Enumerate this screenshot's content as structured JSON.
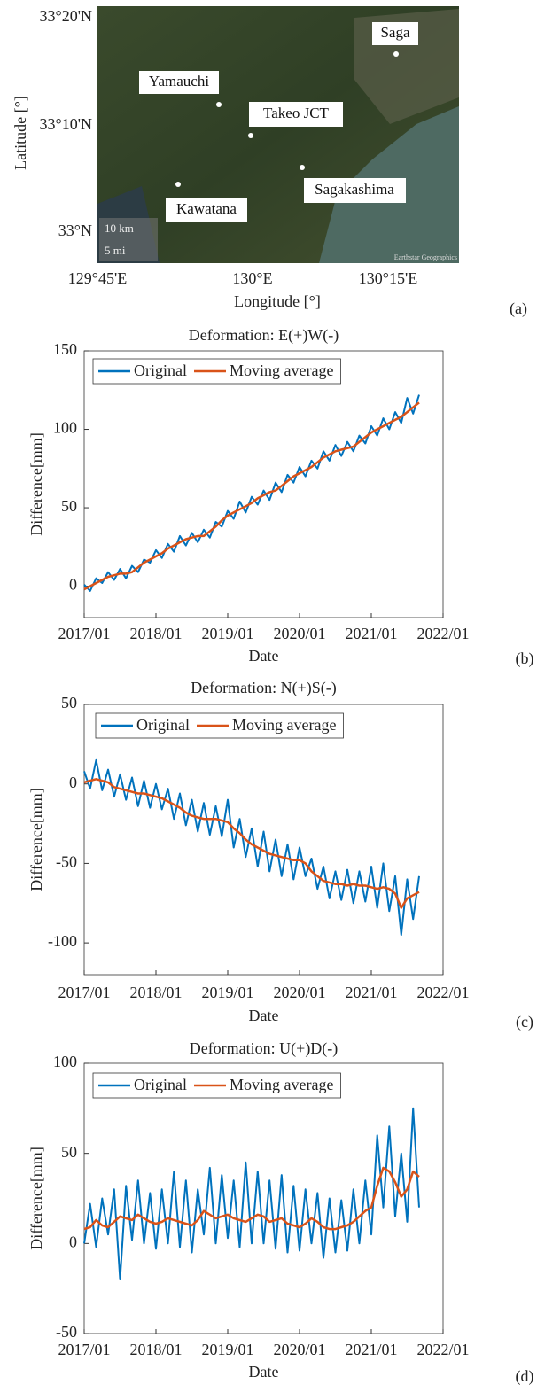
{
  "map": {
    "lat_labels": [
      "33°20'N",
      "33°10'N",
      "33°N"
    ],
    "lon_labels": [
      "129°45'E",
      "130°E",
      "130°15'E"
    ],
    "xlabel": "Longitude [°]",
    "ylabel": "Latitude [°]",
    "places": [
      "Saga",
      "Yamauchi",
      "Takeo JCT",
      "Sagakashima",
      "Kawatana"
    ],
    "scale": [
      "10 km",
      "5 mi"
    ],
    "attribution": "Earthstar Geographics",
    "panel": "(a)"
  },
  "chart_data": [
    {
      "type": "line",
      "title": "Deformation: E(+)W(-)",
      "xlabel": "Date",
      "ylabel": "Difference[mm]",
      "panel": "(b)",
      "xlim": [
        "2017/01",
        "2022/01"
      ],
      "xticks": [
        "2017/01",
        "2018/01",
        "2019/01",
        "2020/01",
        "2021/01",
        "2022/01"
      ],
      "ylim": [
        -20,
        150
      ],
      "yticks": [
        0,
        50,
        100,
        150
      ],
      "legend": "upper left",
      "x": [
        "2017/01",
        "2017/02",
        "2017/03",
        "2017/04",
        "2017/05",
        "2017/06",
        "2017/07",
        "2017/08",
        "2017/09",
        "2017/10",
        "2017/11",
        "2017/12",
        "2018/01",
        "2018/02",
        "2018/03",
        "2018/04",
        "2018/05",
        "2018/06",
        "2018/07",
        "2018/08",
        "2018/09",
        "2018/10",
        "2018/11",
        "2018/12",
        "2019/01",
        "2019/02",
        "2019/03",
        "2019/04",
        "2019/05",
        "2019/06",
        "2019/07",
        "2019/08",
        "2019/09",
        "2019/10",
        "2019/11",
        "2019/12",
        "2020/01",
        "2020/02",
        "2020/03",
        "2020/04",
        "2020/05",
        "2020/06",
        "2020/07",
        "2020/08",
        "2020/09",
        "2020/10",
        "2020/11",
        "2020/12",
        "2021/01",
        "2021/02",
        "2021/03",
        "2021/04",
        "2021/05",
        "2021/06",
        "2021/07",
        "2021/08",
        "2021/09"
      ],
      "series": [
        {
          "name": "Original",
          "color": "#0072BD",
          "values": [
            1,
            -3,
            5,
            2,
            9,
            4,
            11,
            5,
            13,
            9,
            17,
            15,
            23,
            18,
            27,
            22,
            32,
            26,
            34,
            28,
            36,
            31,
            41,
            38,
            48,
            43,
            54,
            47,
            57,
            52,
            61,
            55,
            66,
            60,
            71,
            66,
            76,
            70,
            80,
            75,
            86,
            80,
            90,
            83,
            92,
            86,
            96,
            91,
            102,
            96,
            107,
            100,
            111,
            104,
            120,
            110,
            122
          ]
        },
        {
          "name": "Moving average",
          "color": "#D95319",
          "values": [
            -2,
            0,
            2,
            4,
            6,
            7,
            8,
            8,
            9,
            12,
            15,
            17,
            19,
            21,
            24,
            26,
            28,
            30,
            31,
            32,
            32,
            35,
            38,
            42,
            45,
            47,
            49,
            51,
            53,
            56,
            58,
            60,
            61,
            64,
            67,
            70,
            72,
            74,
            76,
            79,
            82,
            84,
            86,
            87,
            88,
            89,
            92,
            95,
            98,
            100,
            102,
            104,
            106,
            108,
            111,
            114,
            117
          ]
        }
      ]
    },
    {
      "type": "line",
      "title": "Deformation: N(+)S(-)",
      "xlabel": "Date",
      "ylabel": "Difference[mm]",
      "panel": "(c)",
      "xlim": [
        "2017/01",
        "2022/01"
      ],
      "xticks": [
        "2017/01",
        "2018/01",
        "2019/01",
        "2020/01",
        "2021/01",
        "2022/01"
      ],
      "ylim": [
        -120,
        50
      ],
      "yticks": [
        -100,
        -50,
        0,
        50
      ],
      "legend": "upper left",
      "x": [
        "2017/01",
        "2017/02",
        "2017/03",
        "2017/04",
        "2017/05",
        "2017/06",
        "2017/07",
        "2017/08",
        "2017/09",
        "2017/10",
        "2017/11",
        "2017/12",
        "2018/01",
        "2018/02",
        "2018/03",
        "2018/04",
        "2018/05",
        "2018/06",
        "2018/07",
        "2018/08",
        "2018/09",
        "2018/10",
        "2018/11",
        "2018/12",
        "2019/01",
        "2019/02",
        "2019/03",
        "2019/04",
        "2019/05",
        "2019/06",
        "2019/07",
        "2019/08",
        "2019/09",
        "2019/10",
        "2019/11",
        "2019/12",
        "2020/01",
        "2020/02",
        "2020/03",
        "2020/04",
        "2020/05",
        "2020/06",
        "2020/07",
        "2020/08",
        "2020/09",
        "2020/10",
        "2020/11",
        "2020/12",
        "2021/01",
        "2021/02",
        "2021/03",
        "2021/04",
        "2021/05",
        "2021/06",
        "2021/07",
        "2021/08",
        "2021/09"
      ],
      "series": [
        {
          "name": "Original",
          "color": "#0072BD",
          "values": [
            8,
            -3,
            15,
            -4,
            9,
            -8,
            6,
            -10,
            4,
            -14,
            2,
            -15,
            0,
            -16,
            -3,
            -22,
            -6,
            -26,
            -10,
            -30,
            -12,
            -32,
            -14,
            -33,
            -10,
            -40,
            -22,
            -46,
            -28,
            -52,
            -30,
            -55,
            -35,
            -58,
            -38,
            -60,
            -40,
            -58,
            -47,
            -66,
            -52,
            -72,
            -55,
            -73,
            -54,
            -75,
            -55,
            -74,
            -52,
            -78,
            -50,
            -80,
            -58,
            -95,
            -60,
            -85,
            -58
          ]
        },
        {
          "name": "Moving average",
          "color": "#D95319",
          "values": [
            1,
            2,
            3,
            2,
            1,
            -2,
            -3,
            -4,
            -5,
            -6,
            -6,
            -7,
            -8,
            -9,
            -11,
            -13,
            -15,
            -18,
            -20,
            -21,
            -22,
            -22,
            -22,
            -23,
            -24,
            -28,
            -31,
            -35,
            -38,
            -40,
            -42,
            -44,
            -45,
            -46,
            -47,
            -48,
            -48,
            -50,
            -55,
            -58,
            -61,
            -62,
            -63,
            -63,
            -64,
            -63,
            -64,
            -64,
            -65,
            -66,
            -65,
            -66,
            -69,
            -78,
            -72,
            -70,
            -68
          ]
        }
      ]
    },
    {
      "type": "line",
      "title": "Deformation: U(+)D(-)",
      "xlabel": "Date",
      "ylabel": "Difference[mm]",
      "panel": "(d)",
      "xlim": [
        "2017/01",
        "2022/01"
      ],
      "xticks": [
        "2017/01",
        "2018/01",
        "2019/01",
        "2020/01",
        "2021/01",
        "2022/01"
      ],
      "ylim": [
        -50,
        100
      ],
      "yticks": [
        -50,
        0,
        50,
        100
      ],
      "legend": "upper left",
      "x": [
        "2017/01",
        "2017/02",
        "2017/03",
        "2017/04",
        "2017/05",
        "2017/06",
        "2017/07",
        "2017/08",
        "2017/09",
        "2017/10",
        "2017/11",
        "2017/12",
        "2018/01",
        "2018/02",
        "2018/03",
        "2018/04",
        "2018/05",
        "2018/06",
        "2018/07",
        "2018/08",
        "2018/09",
        "2018/10",
        "2018/11",
        "2018/12",
        "2019/01",
        "2019/02",
        "2019/03",
        "2019/04",
        "2019/05",
        "2019/06",
        "2019/07",
        "2019/08",
        "2019/09",
        "2019/10",
        "2019/11",
        "2019/12",
        "2020/01",
        "2020/02",
        "2020/03",
        "2020/04",
        "2020/05",
        "2020/06",
        "2020/07",
        "2020/08",
        "2020/09",
        "2020/10",
        "2020/11",
        "2020/12",
        "2021/01",
        "2021/02",
        "2021/03",
        "2021/04",
        "2021/05",
        "2021/06",
        "2021/07",
        "2021/08",
        "2021/09"
      ],
      "series": [
        {
          "name": "Original",
          "color": "#0072BD",
          "values": [
            0,
            22,
            -2,
            25,
            5,
            30,
            -20,
            32,
            2,
            35,
            0,
            28,
            -3,
            30,
            0,
            40,
            -2,
            35,
            -5,
            30,
            5,
            42,
            0,
            38,
            3,
            35,
            -2,
            45,
            0,
            40,
            0,
            35,
            -3,
            38,
            -5,
            32,
            -4,
            30,
            0,
            28,
            -8,
            25,
            -5,
            24,
            -4,
            30,
            0,
            35,
            5,
            60,
            20,
            65,
            15,
            50,
            12,
            75,
            20
          ]
        },
        {
          "name": "Moving average",
          "color": "#D95319",
          "values": [
            8,
            9,
            13,
            10,
            9,
            12,
            15,
            14,
            13,
            16,
            14,
            12,
            11,
            12,
            14,
            13,
            12,
            11,
            10,
            13,
            18,
            16,
            14,
            15,
            16,
            14,
            13,
            12,
            14,
            16,
            15,
            12,
            13,
            14,
            11,
            10,
            9,
            11,
            14,
            12,
            9,
            8,
            8,
            9,
            10,
            12,
            15,
            18,
            20,
            32,
            42,
            40,
            34,
            26,
            30,
            40,
            37
          ]
        }
      ]
    }
  ]
}
